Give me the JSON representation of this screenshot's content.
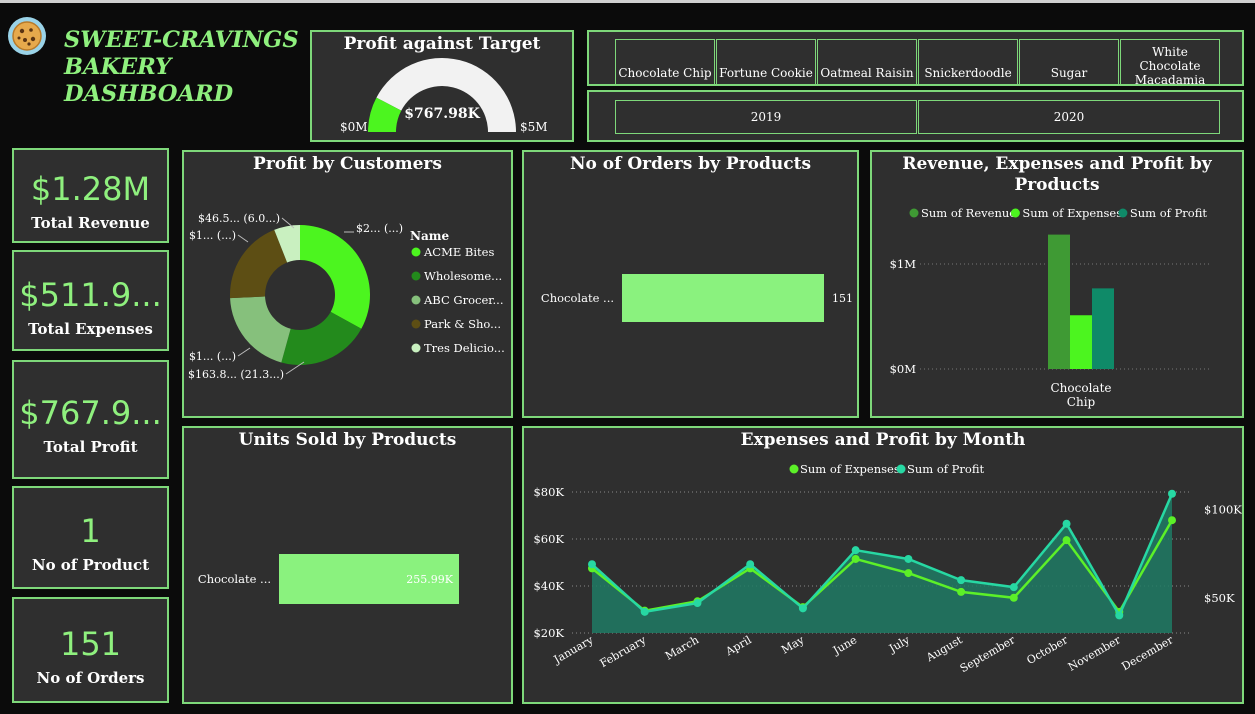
{
  "header": {
    "title_line1": "SWEET-CRAVINGS",
    "title_line2": "BAKERY",
    "title_line3": "DASHBOARD",
    "logo_icon": "cookie-icon"
  },
  "gauge": {
    "title": "Profit against Target",
    "value_label": "$767.98K",
    "min_label": "$0M",
    "max_label": "$5M",
    "fraction": 0.1536,
    "fill_color": "#4cf51f",
    "track_color": "#f2f2f2"
  },
  "product_slicer": {
    "items": [
      "Chocolate Chip",
      "Fortune Cookie",
      "Oatmeal Raisin",
      "Snickerdoodle",
      "Sugar",
      "White Chocolate Macadamia"
    ]
  },
  "year_slicer": {
    "items": [
      "2019",
      "2020"
    ]
  },
  "kpis": {
    "revenue": {
      "value": "$1.28M",
      "label": "Total Revenue"
    },
    "expenses": {
      "value": "$511.9...",
      "label": "Total Expenses"
    },
    "profit": {
      "value": "$767.9...",
      "label": "Total Profit"
    },
    "products": {
      "value": "1",
      "label": "No of Product"
    },
    "orders": {
      "value": "151",
      "label": "No of Orders"
    }
  },
  "chart_data": [
    {
      "id": "profit-by-customers",
      "type": "pie",
      "title": "Profit by Customers",
      "legend_title": "Name",
      "labels": [
        "ACME Bites",
        "Wholesome...",
        "ABC Grocer...",
        "Park & Sho...",
        "Tres Delicio..."
      ],
      "values": [
        33,
        21.3,
        20,
        19.7,
        6
      ],
      "colors": [
        "#4cf51f",
        "#238a1c",
        "#86c07c",
        "#5d4e14",
        "#c9f0c0"
      ],
      "data_labels": [
        "$2... (...)",
        "$163.8... (21.3...)",
        "$1... (...)",
        "$1... (...)",
        "$46.5... (6.0...)"
      ]
    },
    {
      "id": "orders-by-products",
      "type": "bar",
      "title": "No of Orders by Products",
      "categories": [
        "Chocolate ..."
      ],
      "values": [
        151
      ],
      "data_labels": [
        "151"
      ],
      "xlim": [
        0,
        151
      ]
    },
    {
      "id": "rev-exp-profit-by-products",
      "type": "bar",
      "title": "Revenue, Expenses and Profit by Products",
      "categories": [
        "Chocolate Chip"
      ],
      "series": [
        {
          "name": "Sum of Revenue",
          "values": [
            1280000
          ],
          "color": "#3f9a34"
        },
        {
          "name": "Sum of Expenses",
          "values": [
            511900
          ],
          "color": "#4cf51f"
        },
        {
          "name": "Sum of Profit",
          "values": [
            767980
          ],
          "color": "#0f8a68"
        }
      ],
      "yticks": [
        "$1M",
        "$0M"
      ],
      "ytick_values": [
        1000000,
        0
      ],
      "ylim": [
        0,
        1400000
      ]
    },
    {
      "id": "units-sold-by-products",
      "type": "bar",
      "title": "Units Sold by Products",
      "categories": [
        "Chocolate ..."
      ],
      "values": [
        255990
      ],
      "data_labels": [
        "255.99K"
      ],
      "xlim": [
        0,
        255990
      ]
    },
    {
      "id": "expenses-profit-by-month",
      "type": "line",
      "title": "Expenses and Profit by Month",
      "categories": [
        "January",
        "February",
        "March",
        "April",
        "May",
        "June",
        "July",
        "August",
        "September",
        "October",
        "November",
        "December"
      ],
      "series": [
        {
          "name": "Sum of Expenses",
          "axis": "left",
          "color": "#5cf028",
          "values": [
            47500,
            29500,
            33500,
            47500,
            31000,
            51500,
            45500,
            37500,
            35000,
            59500,
            29000,
            68000
          ]
        },
        {
          "name": "Sum of Profit",
          "axis": "right",
          "color": "#27d8a3",
          "values": [
            69000,
            42000,
            47000,
            69000,
            44000,
            77000,
            72000,
            60000,
            56000,
            92000,
            40000,
            109000
          ]
        }
      ],
      "yticks_left": [
        "$80K",
        "$60K",
        "$40K",
        "$20K"
      ],
      "yticks_left_values": [
        80000,
        60000,
        40000,
        20000
      ],
      "ylim_left": [
        20000,
        80000
      ],
      "yticks_right": [
        "$100K",
        "$50K"
      ],
      "yticks_right_values": [
        100000,
        50000
      ],
      "ylim_right": [
        30000,
        110000
      ]
    }
  ]
}
